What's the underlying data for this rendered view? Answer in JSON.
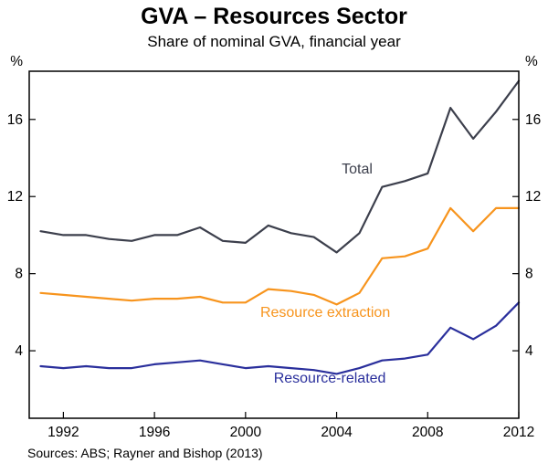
{
  "page": {
    "title": "GVA – Resources Sector",
    "subtitle": "Share of nominal GVA, financial year",
    "footer": "Sources: ABS; Rayner and Bishop (2013)"
  },
  "chart_data": {
    "type": "line",
    "title": "GVA – Resources Sector",
    "subtitle": "Share of nominal GVA, financial year",
    "xlabel": "financial year",
    "ylabel": "%",
    "unit": "%",
    "grid": false,
    "legend_position": "inline-annotations",
    "x": [
      1991,
      1992,
      1993,
      1994,
      1995,
      1996,
      1997,
      1998,
      1999,
      2000,
      2001,
      2002,
      2003,
      2004,
      2005,
      2006,
      2007,
      2008,
      2009,
      2010,
      2011,
      2012
    ],
    "series": [
      {
        "name": "Total",
        "color": "#3c3f4c",
        "values": [
          10.2,
          10.0,
          10.0,
          9.8,
          9.7,
          10.0,
          10.0,
          10.4,
          9.7,
          9.6,
          10.5,
          10.1,
          9.9,
          9.1,
          10.1,
          12.5,
          12.8,
          13.2,
          16.6,
          15.0,
          16.4,
          18.0
        ]
      },
      {
        "name": "Resource extraction",
        "color": "#f7941d",
        "values": [
          7.0,
          6.9,
          6.8,
          6.7,
          6.6,
          6.7,
          6.7,
          6.8,
          6.5,
          6.5,
          7.2,
          7.1,
          6.9,
          6.4,
          7.0,
          8.8,
          8.9,
          9.3,
          11.4,
          10.2,
          11.4,
          11.4
        ]
      },
      {
        "name": "Resource-related",
        "color": "#2a2f9c",
        "values": [
          3.2,
          3.1,
          3.2,
          3.1,
          3.1,
          3.3,
          3.4,
          3.5,
          3.3,
          3.1,
          3.2,
          3.1,
          3.0,
          2.8,
          3.1,
          3.5,
          3.6,
          3.8,
          5.2,
          4.6,
          5.3,
          6.5
        ]
      }
    ],
    "xlim": [
      1990.5,
      2012
    ],
    "ylim": [
      0.5,
      18.5
    ],
    "xticks": [
      1992,
      1996,
      2000,
      2004,
      2008,
      2012
    ],
    "yticks": [
      4,
      8,
      12,
      16
    ],
    "annotations": [
      {
        "text": "Total",
        "x": 2004.9,
        "y": 13.2,
        "color": "#3c3f4c"
      },
      {
        "text": "Resource extraction",
        "x": 2003.5,
        "y": 5.75,
        "color": "#f7941d"
      },
      {
        "text": "Resource-related",
        "x": 2003.7,
        "y": 2.35,
        "color": "#2a2f9c"
      }
    ]
  }
}
